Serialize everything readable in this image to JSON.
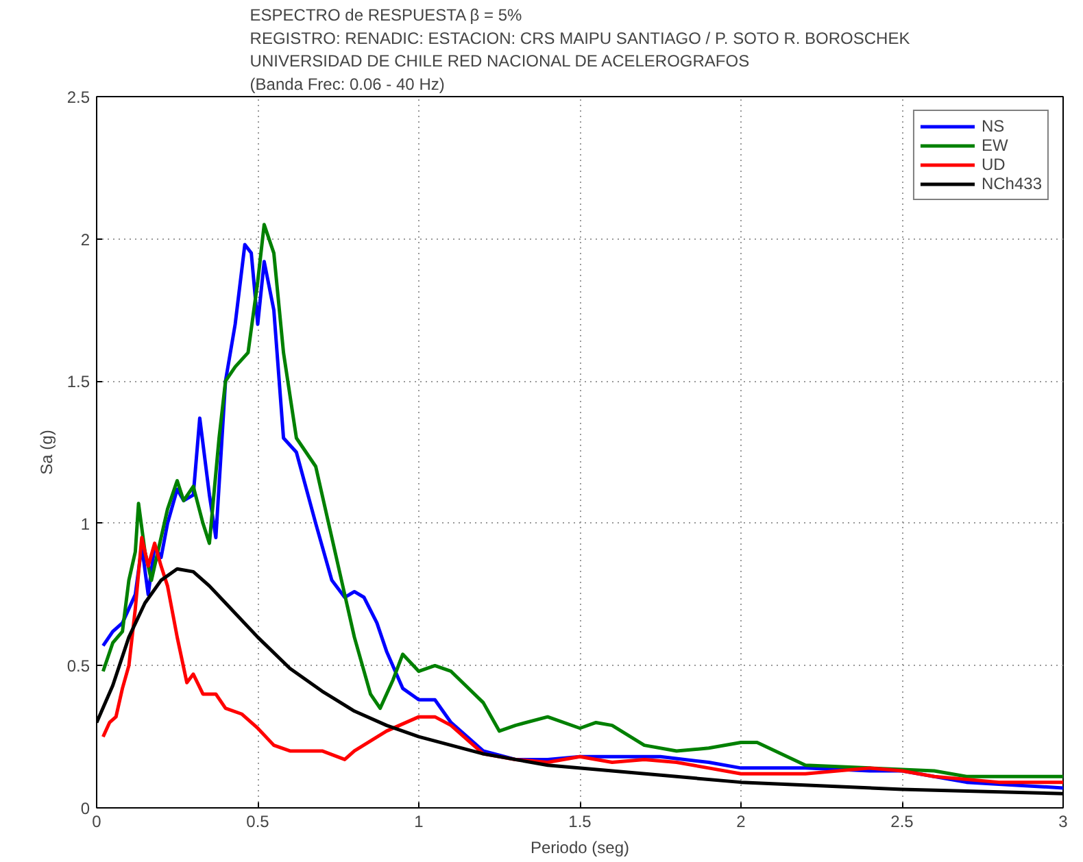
{
  "chart_data": {
    "type": "line",
    "title": "ESPECTRO de RESPUESTA β = 5%\nREGISTRO: RENADIC: ESTACION: CRS MAIPU SANTIAGO / P. SOTO R. BOROSCHEK\nUNIVERSIDAD DE CHILE RED NACIONAL DE ACELEROGRAFOS\n(Banda Frec: 0.06 - 40 Hz)",
    "xlabel": "Periodo (seg)",
    "ylabel": "Sa (g)",
    "xlim": [
      0,
      3
    ],
    "ylim": [
      0,
      2.5
    ],
    "xticks": [
      0,
      0.5,
      1,
      1.5,
      2,
      2.5,
      3
    ],
    "yticks": [
      0,
      0.5,
      1,
      1.5,
      2,
      2.5
    ],
    "grid": true,
    "legend": "top right",
    "line_style": "solid",
    "series": [
      {
        "name": "NS",
        "color": "#0000ff",
        "x": [
          0.02,
          0.05,
          0.08,
          0.1,
          0.12,
          0.14,
          0.16,
          0.18,
          0.2,
          0.22,
          0.25,
          0.27,
          0.3,
          0.32,
          0.35,
          0.37,
          0.4,
          0.43,
          0.46,
          0.48,
          0.5,
          0.52,
          0.55,
          0.58,
          0.62,
          0.68,
          0.73,
          0.77,
          0.8,
          0.83,
          0.87,
          0.9,
          0.95,
          1.0,
          1.05,
          1.1,
          1.2,
          1.3,
          1.4,
          1.5,
          1.6,
          1.75,
          1.9,
          2.0,
          2.2,
          2.4,
          2.5,
          2.7,
          3.0
        ],
        "values": [
          0.57,
          0.62,
          0.65,
          0.7,
          0.75,
          0.92,
          0.75,
          0.92,
          0.88,
          1.0,
          1.12,
          1.08,
          1.1,
          1.37,
          1.1,
          0.95,
          1.5,
          1.7,
          1.98,
          1.95,
          1.7,
          1.92,
          1.75,
          1.3,
          1.25,
          1.0,
          0.8,
          0.74,
          0.76,
          0.74,
          0.65,
          0.55,
          0.42,
          0.38,
          0.38,
          0.3,
          0.2,
          0.17,
          0.17,
          0.18,
          0.18,
          0.18,
          0.16,
          0.14,
          0.14,
          0.13,
          0.13,
          0.09,
          0.07
        ]
      },
      {
        "name": "EW",
        "color": "#008000",
        "x": [
          0.02,
          0.05,
          0.08,
          0.1,
          0.12,
          0.13,
          0.15,
          0.17,
          0.2,
          0.22,
          0.25,
          0.27,
          0.3,
          0.33,
          0.35,
          0.38,
          0.4,
          0.43,
          0.47,
          0.5,
          0.52,
          0.55,
          0.58,
          0.62,
          0.68,
          0.73,
          0.8,
          0.85,
          0.88,
          0.92,
          0.95,
          1.0,
          1.05,
          1.1,
          1.2,
          1.25,
          1.3,
          1.4,
          1.5,
          1.55,
          1.6,
          1.7,
          1.8,
          1.9,
          2.0,
          2.05,
          2.2,
          2.4,
          2.6,
          2.7,
          3.0
        ],
        "values": [
          0.48,
          0.58,
          0.62,
          0.8,
          0.9,
          1.07,
          0.9,
          0.8,
          0.95,
          1.05,
          1.15,
          1.08,
          1.13,
          1.0,
          0.93,
          1.3,
          1.5,
          1.55,
          1.6,
          1.85,
          2.05,
          1.95,
          1.6,
          1.3,
          1.2,
          0.95,
          0.6,
          0.4,
          0.35,
          0.45,
          0.54,
          0.48,
          0.5,
          0.48,
          0.37,
          0.27,
          0.29,
          0.32,
          0.28,
          0.3,
          0.29,
          0.22,
          0.2,
          0.21,
          0.23,
          0.23,
          0.15,
          0.14,
          0.13,
          0.11,
          0.11
        ]
      },
      {
        "name": "UD",
        "color": "#ff0000",
        "x": [
          0.02,
          0.04,
          0.06,
          0.08,
          0.1,
          0.12,
          0.14,
          0.16,
          0.18,
          0.2,
          0.22,
          0.25,
          0.28,
          0.3,
          0.33,
          0.37,
          0.4,
          0.45,
          0.5,
          0.55,
          0.6,
          0.7,
          0.77,
          0.8,
          0.9,
          1.0,
          1.05,
          1.1,
          1.2,
          1.3,
          1.4,
          1.5,
          1.6,
          1.7,
          1.8,
          1.9,
          2.0,
          2.2,
          2.4,
          2.5,
          2.6,
          2.8,
          3.0
        ],
        "values": [
          0.25,
          0.3,
          0.32,
          0.42,
          0.5,
          0.7,
          0.95,
          0.85,
          0.93,
          0.85,
          0.78,
          0.6,
          0.44,
          0.47,
          0.4,
          0.4,
          0.35,
          0.33,
          0.28,
          0.22,
          0.2,
          0.2,
          0.17,
          0.2,
          0.27,
          0.32,
          0.32,
          0.29,
          0.19,
          0.17,
          0.16,
          0.18,
          0.16,
          0.17,
          0.16,
          0.14,
          0.12,
          0.12,
          0.14,
          0.13,
          0.11,
          0.09,
          0.09
        ]
      },
      {
        "name": "NCh433",
        "color": "#000000",
        "x": [
          0,
          0.05,
          0.1,
          0.15,
          0.2,
          0.25,
          0.3,
          0.35,
          0.4,
          0.5,
          0.6,
          0.7,
          0.8,
          0.9,
          1.0,
          1.2,
          1.4,
          1.6,
          1.8,
          2.0,
          2.5,
          3.0
        ],
        "values": [
          0.3,
          0.43,
          0.6,
          0.72,
          0.8,
          0.84,
          0.83,
          0.78,
          0.72,
          0.6,
          0.49,
          0.41,
          0.34,
          0.29,
          0.25,
          0.19,
          0.15,
          0.13,
          0.11,
          0.09,
          0.065,
          0.05
        ]
      }
    ]
  }
}
